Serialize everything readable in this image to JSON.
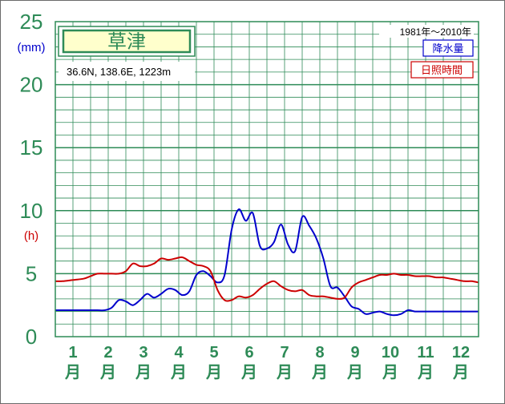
{
  "chart_data": {
    "type": "line",
    "title": "草津",
    "subtitle": "36.6N, 138.6E, 1223m",
    "period": "1981年〜2010年",
    "categories": [
      "1",
      "2",
      "3",
      "4",
      "5",
      "6",
      "7",
      "8",
      "9",
      "10",
      "11",
      "12"
    ],
    "month_suffix": "月",
    "yticks": [
      "0",
      "5",
      "10",
      "15",
      "20",
      "25"
    ],
    "ylim": [
      0,
      25
    ],
    "units": {
      "precip": "(mm)",
      "sunshine": "(h)"
    },
    "grid": true,
    "legend_position": "top-right",
    "series": [
      {
        "name": "降水量",
        "color": "#0000cc",
        "x": [
          0.5,
          0.7,
          1.0,
          1.3,
          1.5,
          1.7,
          1.9,
          2.1,
          2.3,
          2.5,
          2.7,
          2.9,
          3.1,
          3.3,
          3.5,
          3.7,
          3.9,
          4.1,
          4.3,
          4.5,
          4.7,
          4.9,
          5.1,
          5.3,
          5.5,
          5.7,
          5.9,
          6.1,
          6.3,
          6.5,
          6.7,
          6.9,
          7.1,
          7.3,
          7.5,
          7.7,
          7.9,
          8.1,
          8.3,
          8.5,
          8.7,
          8.9,
          9.1,
          9.3,
          9.5,
          9.7,
          9.9,
          10.1,
          10.3,
          10.5,
          10.7,
          10.9,
          11.1,
          11.3,
          11.5,
          11.7,
          11.9,
          12.1,
          12.3,
          12.5
        ],
        "values": [
          2.1,
          2.1,
          2.1,
          2.1,
          2.1,
          2.1,
          2.1,
          2.3,
          2.9,
          2.8,
          2.5,
          2.9,
          3.4,
          3.1,
          3.4,
          3.8,
          3.7,
          3.3,
          3.6,
          4.9,
          5.2,
          4.8,
          4.3,
          4.9,
          8.5,
          10.1,
          9.2,
          9.8,
          7.2,
          7.0,
          7.5,
          8.9,
          7.3,
          6.8,
          9.5,
          8.8,
          7.8,
          6.2,
          4.0,
          3.9,
          3.2,
          2.4,
          2.2,
          1.8,
          1.9,
          2.0,
          1.8,
          1.7,
          1.8,
          2.1,
          2.0,
          2.0,
          2.0,
          2.0,
          2.0,
          2.0,
          2.0,
          2.0,
          2.0,
          2.0
        ]
      },
      {
        "name": "日照時間",
        "color": "#cc0000",
        "x": [
          0.5,
          0.7,
          1.0,
          1.3,
          1.5,
          1.7,
          1.9,
          2.1,
          2.3,
          2.5,
          2.7,
          2.9,
          3.1,
          3.3,
          3.5,
          3.7,
          3.9,
          4.1,
          4.3,
          4.5,
          4.7,
          4.9,
          5.1,
          5.3,
          5.5,
          5.7,
          5.9,
          6.1,
          6.3,
          6.5,
          6.7,
          6.9,
          7.1,
          7.3,
          7.5,
          7.7,
          7.9,
          8.1,
          8.3,
          8.5,
          8.7,
          8.9,
          9.1,
          9.3,
          9.5,
          9.7,
          9.9,
          10.1,
          10.3,
          10.5,
          10.7,
          10.9,
          11.1,
          11.3,
          11.5,
          11.7,
          11.9,
          12.1,
          12.3,
          12.5
        ],
        "values": [
          4.4,
          4.4,
          4.5,
          4.6,
          4.8,
          5.0,
          5.0,
          5.0,
          5.0,
          5.2,
          5.8,
          5.6,
          5.6,
          5.8,
          6.2,
          6.1,
          6.2,
          6.3,
          6.0,
          5.7,
          5.6,
          5.2,
          3.7,
          2.9,
          2.9,
          3.2,
          3.1,
          3.3,
          3.8,
          4.2,
          4.4,
          4.0,
          3.7,
          3.6,
          3.7,
          3.3,
          3.2,
          3.2,
          3.1,
          3.0,
          3.1,
          3.9,
          4.3,
          4.5,
          4.7,
          4.9,
          4.9,
          5.0,
          4.9,
          4.9,
          4.8,
          4.8,
          4.8,
          4.7,
          4.7,
          4.6,
          4.5,
          4.4,
          4.4,
          4.3
        ]
      }
    ]
  }
}
